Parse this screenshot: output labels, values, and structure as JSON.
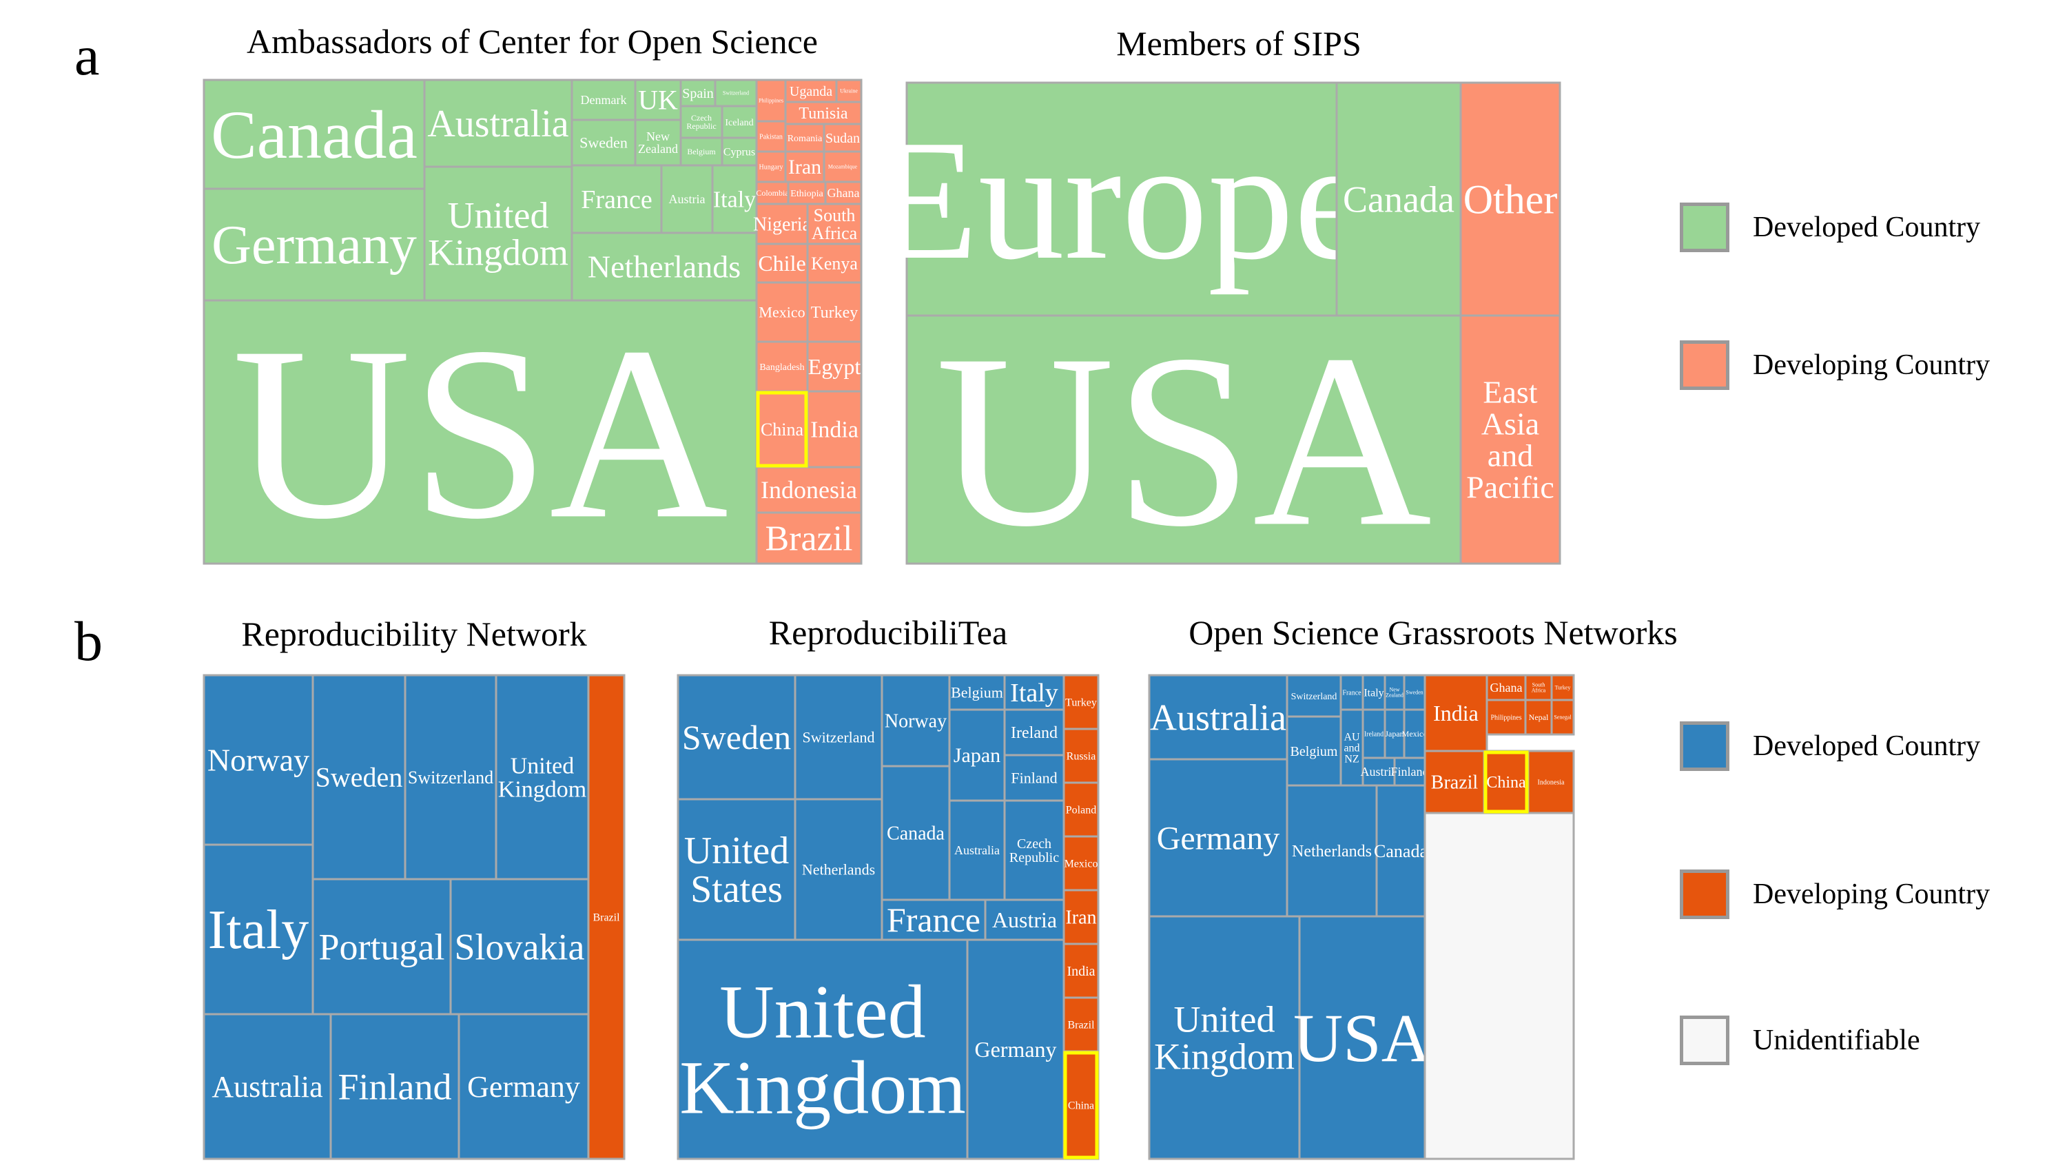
{
  "panel_labels": [
    "a",
    "b"
  ],
  "colors": {
    "developed_a": "#99d595",
    "developing_a": "#fc9272",
    "developed_b": "#3182bd",
    "developing_b": "#e6550d",
    "unidentifiable": "#f7f7f7",
    "border": "#aaaaaa",
    "highlight": "#ffff00"
  },
  "legends": {
    "a": [
      {
        "label": "Developed Country",
        "color": "#99d595"
      },
      {
        "label": "Developing Country",
        "color": "#fc9272"
      }
    ],
    "b": [
      {
        "label": "Developed Country",
        "color": "#3182bd"
      },
      {
        "label": "Developing Country",
        "color": "#e6550d"
      },
      {
        "label": "Unidentifiable",
        "color": "#f7f7f7"
      }
    ]
  },
  "chart_data": [
    {
      "type": "treemap",
      "title": "Ambassadors of Center for Open Science",
      "items": [
        {
          "name": "USA",
          "category": "Developed Country"
        },
        {
          "name": "Canada",
          "category": "Developed Country"
        },
        {
          "name": "Germany",
          "category": "Developed Country"
        },
        {
          "name": "Australia",
          "category": "Developed Country"
        },
        {
          "name": "United Kingdom",
          "category": "Developed Country"
        },
        {
          "name": "Netherlands",
          "category": "Developed Country"
        },
        {
          "name": "France",
          "category": "Developed Country"
        },
        {
          "name": "Austria",
          "category": "Developed Country"
        },
        {
          "name": "Italy",
          "category": "Developed Country"
        },
        {
          "name": "Denmark",
          "category": "Developed Country"
        },
        {
          "name": "UK",
          "category": "Developed Country"
        },
        {
          "name": "Spain",
          "category": "Developed Country"
        },
        {
          "name": "Switzerland",
          "category": "Developed Country"
        },
        {
          "name": "Sweden",
          "category": "Developed Country"
        },
        {
          "name": "New Zealand",
          "category": "Developed Country"
        },
        {
          "name": "Czech Republic",
          "category": "Developed Country"
        },
        {
          "name": "Iceland",
          "category": "Developed Country"
        },
        {
          "name": "Belgium",
          "category": "Developed Country"
        },
        {
          "name": "Cyprus",
          "category": "Developed Country"
        },
        {
          "name": "Philippines",
          "category": "Developing Country"
        },
        {
          "name": "Uganda",
          "category": "Developing Country"
        },
        {
          "name": "Ukraine",
          "category": "Developing Country"
        },
        {
          "name": "Tunisia",
          "category": "Developing Country"
        },
        {
          "name": "Pakistan",
          "category": "Developing Country"
        },
        {
          "name": "Romania",
          "category": "Developing Country"
        },
        {
          "name": "Sudan",
          "category": "Developing Country"
        },
        {
          "name": "Hungary",
          "category": "Developing Country"
        },
        {
          "name": "Iran",
          "category": "Developing Country"
        },
        {
          "name": "Mozambique",
          "category": "Developing Country"
        },
        {
          "name": "Colombia",
          "category": "Developing Country"
        },
        {
          "name": "Ethiopia",
          "category": "Developing Country"
        },
        {
          "name": "Ghana",
          "category": "Developing Country"
        },
        {
          "name": "Nigeria",
          "category": "Developing Country"
        },
        {
          "name": "South Africa",
          "category": "Developing Country"
        },
        {
          "name": "Chile",
          "category": "Developing Country"
        },
        {
          "name": "Kenya",
          "category": "Developing Country"
        },
        {
          "name": "Mexico",
          "category": "Developing Country"
        },
        {
          "name": "Turkey",
          "category": "Developing Country"
        },
        {
          "name": "Bangladesh",
          "category": "Developing Country"
        },
        {
          "name": "Egypt",
          "category": "Developing Country"
        },
        {
          "name": "China",
          "category": "Developing Country",
          "highlighted": true
        },
        {
          "name": "India",
          "category": "Developing Country"
        },
        {
          "name": "Indonesia",
          "category": "Developing Country"
        },
        {
          "name": "Brazil",
          "category": "Developing Country"
        }
      ]
    },
    {
      "type": "treemap",
      "title": "Members of SIPS",
      "items": [
        {
          "name": "USA",
          "category": "Developed Country"
        },
        {
          "name": "Europe",
          "category": "Developed Country"
        },
        {
          "name": "Canada",
          "category": "Developed Country"
        },
        {
          "name": "Other",
          "category": "Developing Country"
        },
        {
          "name": "East Asia and Pacific",
          "category": "Developing Country"
        }
      ]
    },
    {
      "type": "treemap",
      "title": "Reproducibility Network",
      "items": [
        {
          "name": "Norway",
          "category": "Developed Country"
        },
        {
          "name": "Sweden",
          "category": "Developed Country"
        },
        {
          "name": "Switzerland",
          "category": "Developed Country"
        },
        {
          "name": "United Kingdom",
          "category": "Developed Country"
        },
        {
          "name": "Italy",
          "category": "Developed Country"
        },
        {
          "name": "Portugal",
          "category": "Developed Country"
        },
        {
          "name": "Slovakia",
          "category": "Developed Country"
        },
        {
          "name": "Australia",
          "category": "Developed Country"
        },
        {
          "name": "Finland",
          "category": "Developed Country"
        },
        {
          "name": "Germany",
          "category": "Developed Country"
        },
        {
          "name": "Brazil",
          "category": "Developing Country"
        }
      ]
    },
    {
      "type": "treemap",
      "title": "ReproducibiliTea",
      "items": [
        {
          "name": "Sweden",
          "category": "Developed Country"
        },
        {
          "name": "Switzerland",
          "category": "Developed Country"
        },
        {
          "name": "Norway",
          "category": "Developed Country"
        },
        {
          "name": "Belgium",
          "category": "Developed Country"
        },
        {
          "name": "Italy",
          "category": "Developed Country"
        },
        {
          "name": "Japan",
          "category": "Developed Country"
        },
        {
          "name": "Ireland",
          "category": "Developed Country"
        },
        {
          "name": "Finland",
          "category": "Developed Country"
        },
        {
          "name": "Canada",
          "category": "Developed Country"
        },
        {
          "name": "Australia",
          "category": "Developed Country"
        },
        {
          "name": "Czech Republic",
          "category": "Developed Country"
        },
        {
          "name": "United States",
          "category": "Developed Country"
        },
        {
          "name": "Netherlands",
          "category": "Developed Country"
        },
        {
          "name": "France",
          "category": "Developed Country"
        },
        {
          "name": "Austria",
          "category": "Developed Country"
        },
        {
          "name": "United Kingdom",
          "category": "Developed Country"
        },
        {
          "name": "Germany",
          "category": "Developed Country"
        },
        {
          "name": "Turkey",
          "category": "Developing Country"
        },
        {
          "name": "Russia",
          "category": "Developing Country"
        },
        {
          "name": "Poland",
          "category": "Developing Country"
        },
        {
          "name": "Mexico",
          "category": "Developing Country"
        },
        {
          "name": "Iran",
          "category": "Developing Country"
        },
        {
          "name": "India",
          "category": "Developing Country"
        },
        {
          "name": "Brazil",
          "category": "Developing Country"
        },
        {
          "name": "China",
          "category": "Developing Country",
          "highlighted": true
        }
      ]
    },
    {
      "type": "treemap",
      "title": "Open Science Grassroots Networks",
      "items": [
        {
          "name": "Australia",
          "category": "Developed Country"
        },
        {
          "name": "Switzerland",
          "category": "Developed Country"
        },
        {
          "name": "France",
          "category": "Developed Country"
        },
        {
          "name": "Italy",
          "category": "Developed Country"
        },
        {
          "name": "New Zealand",
          "category": "Developed Country"
        },
        {
          "name": "Sweden",
          "category": "Developed Country"
        },
        {
          "name": "Belgium",
          "category": "Developed Country"
        },
        {
          "name": "AU and NZ",
          "category": "Developed Country"
        },
        {
          "name": "Ireland",
          "category": "Developed Country"
        },
        {
          "name": "Japan",
          "category": "Developed Country"
        },
        {
          "name": "Mexico",
          "category": "Developed Country"
        },
        {
          "name": "Austria",
          "category": "Developed Country"
        },
        {
          "name": "Finland",
          "category": "Developed Country"
        },
        {
          "name": "Germany",
          "category": "Developed Country"
        },
        {
          "name": "Netherlands",
          "category": "Developed Country"
        },
        {
          "name": "Canada",
          "category": "Developed Country"
        },
        {
          "name": "United Kingdom",
          "category": "Developed Country"
        },
        {
          "name": "USA",
          "category": "Developed Country"
        },
        {
          "name": "India",
          "category": "Developing Country"
        },
        {
          "name": "Ghana",
          "category": "Developing Country"
        },
        {
          "name": "South Africa",
          "category": "Developing Country"
        },
        {
          "name": "Turkey",
          "category": "Developing Country"
        },
        {
          "name": "Philippines",
          "category": "Developing Country"
        },
        {
          "name": "Nepal",
          "category": "Developing Country"
        },
        {
          "name": "Senegal",
          "category": "Developing Country"
        },
        {
          "name": "Brazil",
          "category": "Developing Country"
        },
        {
          "name": "China",
          "category": "Developing Country",
          "highlighted": true
        },
        {
          "name": "Indonesia",
          "category": "Developing Country"
        },
        {
          "name": "Unidentifiable",
          "category": "Unidentifiable"
        }
      ]
    }
  ]
}
